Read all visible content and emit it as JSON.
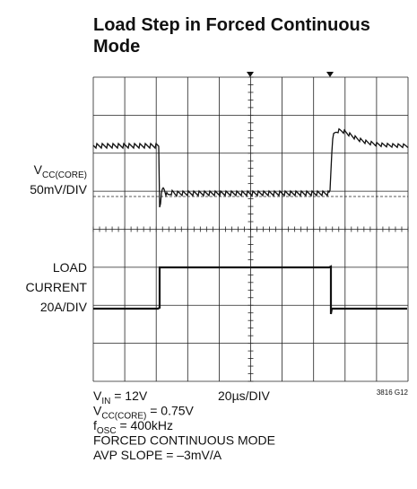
{
  "chart_data": {
    "type": "oscilloscope",
    "title": [
      "Load Step in Forced Continuous",
      "Mode"
    ],
    "channel_labels": [
      {
        "lines": [
          [
            "V",
            "CC(CORE)"
          ],
          [
            "50mV/DIV"
          ]
        ]
      },
      {
        "lines": [
          [
            "LOAD"
          ],
          [
            "CURRENT"
          ],
          [
            "20A/DIV"
          ]
        ]
      }
    ],
    "timebase": "20µs/DIV",
    "figure_id": "3816 G12",
    "conditions": [
      [
        "V",
        "IN",
        " = 12V"
      ],
      [
        "V",
        "CC(CORE)",
        " = 0.75V"
      ],
      [
        "f",
        "OSC",
        " = 400kHz"
      ],
      [
        "FORCED CONTINUOUS MODE"
      ],
      [
        "AVP SLOPE = –3mV/A"
      ]
    ]
  }
}
